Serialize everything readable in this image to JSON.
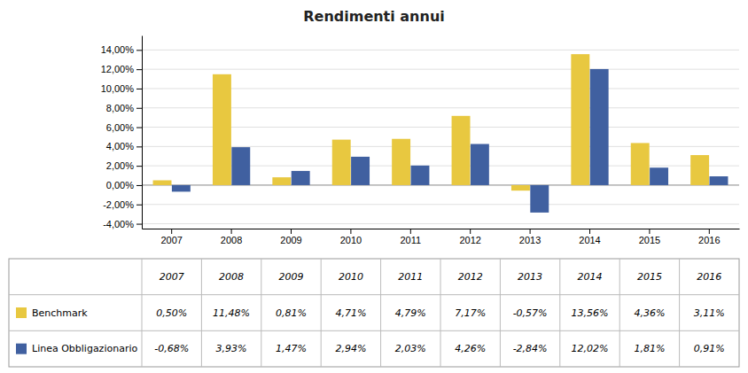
{
  "chart_data": {
    "type": "bar",
    "title": "Rendimenti annui",
    "categories": [
      "2007",
      "2008",
      "2009",
      "2010",
      "2011",
      "2012",
      "2013",
      "2014",
      "2015",
      "2016"
    ],
    "series": [
      {
        "name": "Benchmark",
        "color": "#E8C840",
        "values": [
          0.5,
          11.48,
          0.81,
          4.71,
          4.79,
          7.17,
          -0.57,
          13.56,
          4.36,
          3.11
        ],
        "value_labels": [
          "0,50%",
          "11,48%",
          "0,81%",
          "4,71%",
          "4,79%",
          "7,17%",
          "-0,57%",
          "13,56%",
          "4,36%",
          "3,11%"
        ]
      },
      {
        "name": "Linea Obbligazionario",
        "color": "#4060A0",
        "values": [
          -0.68,
          3.93,
          1.47,
          2.94,
          2.03,
          4.26,
          -2.84,
          12.02,
          1.81,
          0.91
        ],
        "value_labels": [
          "-0,68%",
          "3,93%",
          "1,47%",
          "2,94%",
          "2,03%",
          "4,26%",
          "-2,84%",
          "12,02%",
          "1,81%",
          "0,91%"
        ]
      }
    ],
    "ylim": [
      -4.5,
      15.5
    ],
    "yticks": [
      {
        "value": -4.0,
        "label": "-4,00%"
      },
      {
        "value": -2.0,
        "label": "-2,00%"
      },
      {
        "value": 0.0,
        "label": "0,00%"
      },
      {
        "value": 2.0,
        "label": "2,00%"
      },
      {
        "value": 4.0,
        "label": "4,00%"
      },
      {
        "value": 6.0,
        "label": "6,00%"
      },
      {
        "value": 8.0,
        "label": "8,00%"
      },
      {
        "value": 10.0,
        "label": "10,00%"
      },
      {
        "value": 12.0,
        "label": "12,00%"
      },
      {
        "value": 14.0,
        "label": "14,00%"
      }
    ],
    "grid": true
  }
}
